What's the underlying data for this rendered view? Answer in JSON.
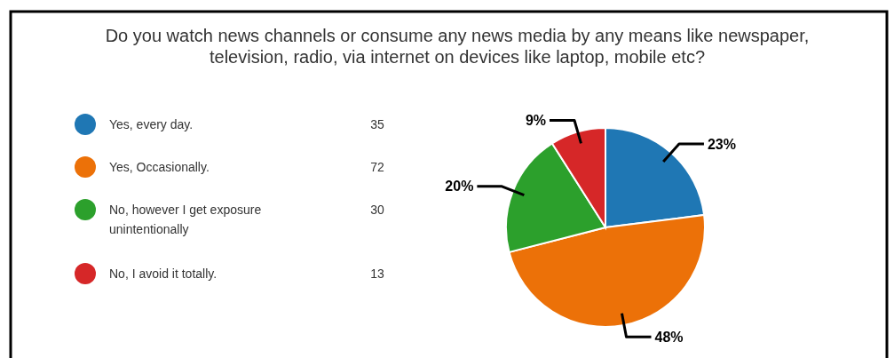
{
  "chart_data": {
    "type": "pie",
    "title": "Do you watch news channels or consume any news media by any means like newspaper,\ntelevision, radio, via internet on devices like laptop, mobile etc?",
    "categories": [
      "Yes, every day.",
      "Yes, Occasionally.",
      "No, however I get exposure unintentionally",
      "No, I avoid it totally."
    ],
    "values": [
      23,
      48,
      20,
      9
    ],
    "annotations": [
      "35",
      "72",
      "30",
      "13"
    ],
    "value_labels": [
      "23%",
      "48%",
      "20%",
      "9%"
    ],
    "colors": [
      "#1f77b4",
      "#ec7108",
      "#2ca02c",
      "#d62728"
    ],
    "legend": "left"
  }
}
